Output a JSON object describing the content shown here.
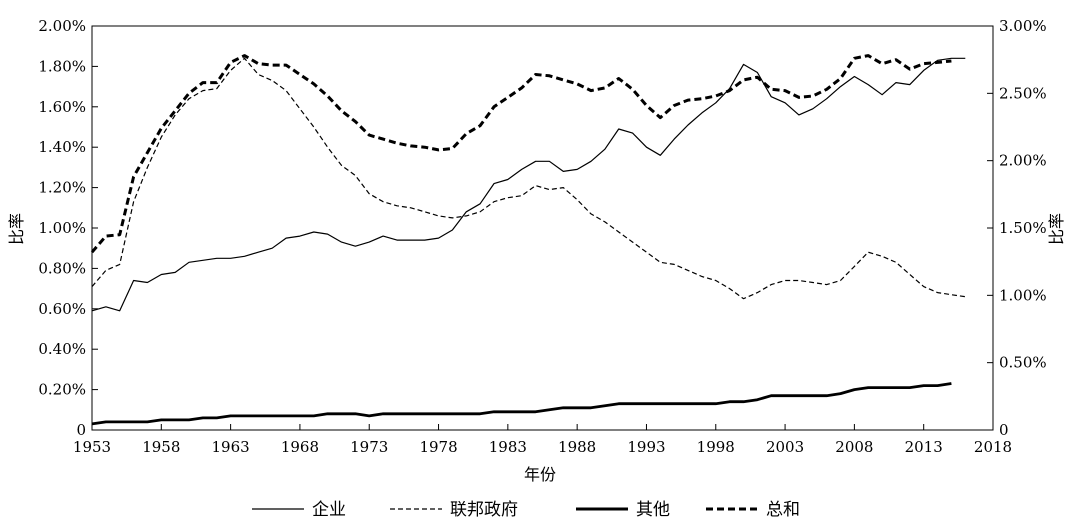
{
  "chart_data": {
    "type": "line",
    "xlabel": "年份",
    "ylabel_left": "比率",
    "ylabel_right": "比率",
    "xlim": [
      1953,
      2018
    ],
    "x_ticks": [
      "1953",
      "1958",
      "1963",
      "1968",
      "1973",
      "1978",
      "1983",
      "1988",
      "1993",
      "1998",
      "2003",
      "2008",
      "2013",
      "2018"
    ],
    "ylim_left": [
      0,
      2.0
    ],
    "y_ticks_left": [
      "0",
      "0.20%",
      "0.40%",
      "0.60%",
      "0.80%",
      "1.00%",
      "1.20%",
      "1.40%",
      "1.60%",
      "1.80%",
      "2.00%"
    ],
    "ylim_right": [
      0,
      3.0
    ],
    "y_ticks_right": [
      "0",
      "0.50%",
      "1.00%",
      "1.50%",
      "2.00%",
      "2.50%",
      "3.00%"
    ],
    "legend_position": "bottom",
    "series": [
      {
        "name": "企业",
        "axis": "left",
        "style": "solid",
        "x": [
          1953,
          1954,
          1955,
          1956,
          1957,
          1958,
          1959,
          1960,
          1961,
          1962,
          1963,
          1964,
          1965,
          1966,
          1967,
          1968,
          1969,
          1970,
          1971,
          1972,
          1973,
          1974,
          1975,
          1976,
          1977,
          1978,
          1979,
          1980,
          1981,
          1982,
          1983,
          1984,
          1985,
          1986,
          1987,
          1988,
          1989,
          1990,
          1991,
          1992,
          1993,
          1994,
          1995,
          1996,
          1997,
          1998,
          1999,
          2000,
          2001,
          2002,
          2003,
          2004,
          2005,
          2006,
          2007,
          2008,
          2009,
          2010,
          2011,
          2012,
          2013,
          2014,
          2015,
          2016
        ],
        "values": [
          0.59,
          0.61,
          0.59,
          0.74,
          0.73,
          0.77,
          0.78,
          0.83,
          0.84,
          0.85,
          0.85,
          0.86,
          0.88,
          0.9,
          0.95,
          0.96,
          0.98,
          0.97,
          0.93,
          0.91,
          0.93,
          0.96,
          0.94,
          0.94,
          0.94,
          0.95,
          0.99,
          1.08,
          1.12,
          1.22,
          1.24,
          1.29,
          1.33,
          1.33,
          1.28,
          1.29,
          1.33,
          1.39,
          1.49,
          1.47,
          1.4,
          1.36,
          1.44,
          1.51,
          1.57,
          1.62,
          1.69,
          1.81,
          1.77,
          1.65,
          1.62,
          1.56,
          1.59,
          1.64,
          1.7,
          1.75,
          1.71,
          1.66,
          1.72,
          1.71,
          1.78,
          1.83,
          1.84,
          1.84
        ]
      },
      {
        "name": "联邦政府",
        "axis": "left",
        "style": "dashed",
        "x": [
          1953,
          1954,
          1955,
          1956,
          1957,
          1958,
          1959,
          1960,
          1961,
          1962,
          1963,
          1964,
          1965,
          1966,
          1967,
          1968,
          1969,
          1970,
          1971,
          1972,
          1973,
          1974,
          1975,
          1976,
          1977,
          1978,
          1979,
          1980,
          1981,
          1982,
          1983,
          1984,
          1985,
          1986,
          1987,
          1988,
          1989,
          1990,
          1991,
          1992,
          1993,
          1994,
          1995,
          1996,
          1997,
          1998,
          1999,
          2000,
          2001,
          2002,
          2003,
          2004,
          2005,
          2006,
          2007,
          2008,
          2009,
          2010,
          2011,
          2012,
          2013,
          2014,
          2015,
          2016
        ],
        "values": [
          0.71,
          0.79,
          0.82,
          1.13,
          1.3,
          1.45,
          1.56,
          1.64,
          1.68,
          1.69,
          1.78,
          1.84,
          1.76,
          1.73,
          1.68,
          1.59,
          1.5,
          1.4,
          1.31,
          1.26,
          1.17,
          1.13,
          1.11,
          1.1,
          1.08,
          1.06,
          1.05,
          1.06,
          1.08,
          1.13,
          1.15,
          1.16,
          1.21,
          1.19,
          1.2,
          1.14,
          1.07,
          1.03,
          0.98,
          0.93,
          0.88,
          0.83,
          0.82,
          0.79,
          0.76,
          0.74,
          0.7,
          0.65,
          0.68,
          0.72,
          0.74,
          0.74,
          0.73,
          0.72,
          0.74,
          0.81,
          0.88,
          0.86,
          0.83,
          0.77,
          0.71,
          0.68,
          0.67,
          0.66
        ]
      },
      {
        "name": "其他",
        "axis": "left",
        "style": "bold-solid",
        "x": [
          1953,
          1954,
          1955,
          1956,
          1957,
          1958,
          1959,
          1960,
          1961,
          1962,
          1963,
          1964,
          1965,
          1966,
          1967,
          1968,
          1969,
          1970,
          1971,
          1972,
          1973,
          1974,
          1975,
          1976,
          1977,
          1978,
          1979,
          1980,
          1981,
          1982,
          1983,
          1984,
          1985,
          1986,
          1987,
          1988,
          1989,
          1990,
          1991,
          1992,
          1993,
          1994,
          1995,
          1996,
          1997,
          1998,
          1999,
          2000,
          2001,
          2002,
          2003,
          2004,
          2005,
          2006,
          2007,
          2008,
          2009,
          2010,
          2011,
          2012,
          2013,
          2014,
          2015
        ],
        "values": [
          0.03,
          0.04,
          0.04,
          0.04,
          0.04,
          0.05,
          0.05,
          0.05,
          0.06,
          0.06,
          0.07,
          0.07,
          0.07,
          0.07,
          0.07,
          0.07,
          0.07,
          0.08,
          0.08,
          0.08,
          0.07,
          0.08,
          0.08,
          0.08,
          0.08,
          0.08,
          0.08,
          0.08,
          0.08,
          0.09,
          0.09,
          0.09,
          0.09,
          0.1,
          0.11,
          0.11,
          0.11,
          0.12,
          0.13,
          0.13,
          0.13,
          0.13,
          0.13,
          0.13,
          0.13,
          0.13,
          0.14,
          0.14,
          0.15,
          0.17,
          0.17,
          0.17,
          0.17,
          0.17,
          0.18,
          0.2,
          0.21,
          0.21,
          0.21,
          0.21,
          0.22,
          0.22,
          0.23
        ]
      },
      {
        "name": "总和",
        "axis": "right",
        "style": "bold-dashed",
        "x": [
          1953,
          1954,
          1955,
          1956,
          1957,
          1958,
          1959,
          1960,
          1961,
          1962,
          1963,
          1964,
          1965,
          1966,
          1967,
          1968,
          1969,
          1970,
          1971,
          1972,
          1973,
          1974,
          1975,
          1976,
          1977,
          1978,
          1979,
          1980,
          1981,
          1982,
          1983,
          1984,
          1985,
          1986,
          1987,
          1988,
          1989,
          1990,
          1991,
          1992,
          1993,
          1994,
          1995,
          1996,
          1997,
          1998,
          1999,
          2000,
          2001,
          2002,
          2003,
          2004,
          2005,
          2006,
          2007,
          2008,
          2009,
          2010,
          2011,
          2012,
          2013,
          2014,
          2015
        ],
        "values": [
          1.32,
          1.44,
          1.45,
          1.88,
          2.06,
          2.24,
          2.37,
          2.5,
          2.58,
          2.58,
          2.73,
          2.78,
          2.72,
          2.71,
          2.71,
          2.64,
          2.57,
          2.48,
          2.37,
          2.29,
          2.19,
          2.16,
          2.13,
          2.11,
          2.1,
          2.08,
          2.09,
          2.2,
          2.26,
          2.4,
          2.47,
          2.54,
          2.64,
          2.63,
          2.6,
          2.57,
          2.52,
          2.54,
          2.61,
          2.53,
          2.41,
          2.32,
          2.41,
          2.45,
          2.46,
          2.48,
          2.52,
          2.6,
          2.62,
          2.53,
          2.52,
          2.47,
          2.48,
          2.53,
          2.61,
          2.76,
          2.78,
          2.72,
          2.75,
          2.68,
          2.72,
          2.73,
          2.74
        ]
      }
    ]
  }
}
